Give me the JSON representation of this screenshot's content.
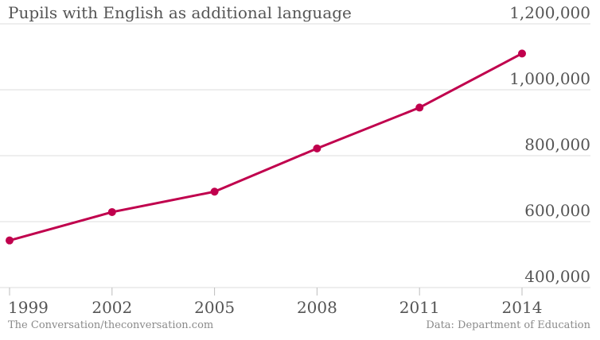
{
  "chart_data": {
    "type": "line",
    "title": "Pupils with English as additional language",
    "x": [
      1999,
      2002,
      2005,
      2008,
      2011,
      2014
    ],
    "x_tick_labels": [
      "1999",
      "2002",
      "2005",
      "2008",
      "2011",
      "2014"
    ],
    "series": [
      {
        "values": [
          543000,
          629000,
          691000,
          822000,
          946000,
          1110000
        ],
        "color": "#c0004d"
      }
    ],
    "yticks": [
      400000,
      600000,
      800000,
      1000000,
      1200000
    ],
    "ytick_labels": [
      "400,000",
      "600,000",
      "800,000",
      "1,000,000",
      "1,200,000"
    ],
    "ylim": [
      400000,
      1200000
    ],
    "xlim": [
      1999,
      2014
    ],
    "grid": true,
    "y_axis_side": "right",
    "xlabel": "",
    "ylabel": ""
  },
  "footer": {
    "source_left": "The Conversation/theconversation.com",
    "source_right": "Data: Department of Education"
  },
  "colors": {
    "line": "#c0004d",
    "grid": "#dcdcdc",
    "text": "#555555"
  }
}
